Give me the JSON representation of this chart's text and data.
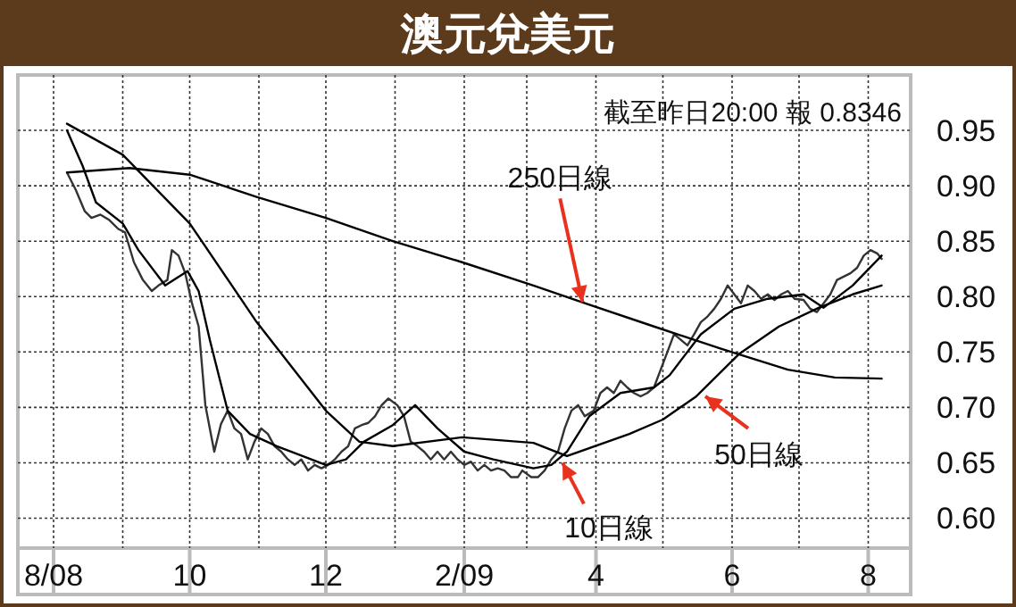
{
  "chart_data": {
    "type": "line",
    "title": "澳元兌美元",
    "xlim": [
      "2008-08-01",
      "2009-08-20"
    ],
    "xticks": [
      {
        "value": "2008-08-01",
        "label": "8/08"
      },
      {
        "value": "2008-09-01",
        "label": null
      },
      {
        "value": "2008-10-01",
        "label": "10"
      },
      {
        "value": "2008-11-01",
        "label": null
      },
      {
        "value": "2008-12-01",
        "label": "12"
      },
      {
        "value": "2009-01-01",
        "label": null
      },
      {
        "value": "2009-02-01",
        "label": "2/09"
      },
      {
        "value": "2009-03-01",
        "label": null
      },
      {
        "value": "2009-04-01",
        "label": "4"
      },
      {
        "value": "2009-05-01",
        "label": null
      },
      {
        "value": "2009-06-01",
        "label": "6"
      },
      {
        "value": "2009-07-01",
        "label": null
      },
      {
        "value": "2009-08-01",
        "label": "8"
      }
    ],
    "ylim": [
      0.573,
      1.0
    ],
    "yticks": [
      {
        "value": 0.6,
        "label": "0.60"
      },
      0.65,
      {
        "value": 0.7,
        "label": "0.70"
      },
      0.75,
      {
        "value": 0.8,
        "label": "0.80"
      },
      0.85,
      {
        "value": 0.9,
        "label": "0.90"
      },
      0.95
    ],
    "grid": true,
    "line_style": "solid",
    "series": [
      {
        "color": "#333333",
        "x": [
          "2008-08-07",
          "2008-08-11",
          "2008-08-15",
          "2008-08-18",
          "2008-08-22",
          "2008-08-26",
          "2008-08-30",
          "2008-09-02",
          "2008-09-06",
          "2008-09-10",
          "2008-09-14",
          "2008-09-17",
          "2008-09-21",
          "2008-09-23",
          "2008-09-26",
          "2008-09-29",
          "2008-10-02",
          "2008-10-05",
          "2008-10-08",
          "2008-10-10",
          "2008-10-12",
          "2008-10-15",
          "2008-10-18",
          "2008-10-21",
          "2008-10-24",
          "2008-10-27",
          "2008-10-30",
          "2008-11-02",
          "2008-11-05",
          "2008-11-08",
          "2008-11-11",
          "2008-11-14",
          "2008-11-17",
          "2008-11-20",
          "2008-11-23",
          "2008-11-26",
          "2008-11-29",
          "2008-12-02",
          "2008-12-05",
          "2008-12-08",
          "2008-12-11",
          "2008-12-14",
          "2008-12-17",
          "2008-12-20",
          "2008-12-23",
          "2008-12-26",
          "2008-12-29",
          "2009-01-02",
          "2009-01-05",
          "2009-01-08",
          "2009-01-11",
          "2009-01-14",
          "2009-01-17",
          "2009-01-20",
          "2009-01-23",
          "2009-01-26",
          "2009-01-29",
          "2009-02-01",
          "2009-02-04",
          "2009-02-07",
          "2009-02-10",
          "2009-02-13",
          "2009-02-16",
          "2009-02-19",
          "2009-02-22",
          "2009-02-25",
          "2009-02-27",
          "2009-03-03",
          "2009-03-06",
          "2009-03-09",
          "2009-03-12",
          "2009-03-15",
          "2009-03-18",
          "2009-03-21",
          "2009-03-24",
          "2009-03-27",
          "2009-03-31",
          "2009-04-03",
          "2009-04-06",
          "2009-04-09",
          "2009-04-12",
          "2009-04-15",
          "2009-04-18",
          "2009-04-21",
          "2009-04-24",
          "2009-04-27",
          "2009-04-30",
          "2009-05-03",
          "2009-05-06",
          "2009-05-09",
          "2009-05-12",
          "2009-05-15",
          "2009-05-18",
          "2009-05-21",
          "2009-05-24",
          "2009-05-27",
          "2009-05-30",
          "2009-06-02",
          "2009-06-05",
          "2009-06-08",
          "2009-06-11",
          "2009-06-14",
          "2009-06-17",
          "2009-06-20",
          "2009-06-23",
          "2009-06-26",
          "2009-06-29",
          "2009-07-03",
          "2009-07-06",
          "2009-07-09",
          "2009-07-12",
          "2009-07-15",
          "2009-07-18",
          "2009-07-21",
          "2009-07-24",
          "2009-07-27",
          "2009-07-30",
          "2009-08-02",
          "2009-08-05",
          "2009-08-07"
        ],
        "values": [
          0.912,
          0.896,
          0.877,
          0.871,
          0.874,
          0.869,
          0.861,
          0.858,
          0.831,
          0.815,
          0.805,
          0.81,
          0.815,
          0.842,
          0.837,
          0.821,
          0.794,
          0.773,
          0.702,
          0.681,
          0.66,
          0.685,
          0.697,
          0.681,
          0.676,
          0.653,
          0.669,
          0.681,
          0.676,
          0.665,
          0.66,
          0.653,
          0.648,
          0.653,
          0.643,
          0.648,
          0.645,
          0.648,
          0.653,
          0.66,
          0.665,
          0.681,
          0.684,
          0.686,
          0.692,
          0.702,
          0.708,
          0.702,
          0.692,
          0.669,
          0.665,
          0.66,
          0.653,
          0.66,
          0.653,
          0.66,
          0.653,
          0.648,
          0.651,
          0.643,
          0.648,
          0.643,
          0.645,
          0.643,
          0.637,
          0.637,
          0.643,
          0.637,
          0.637,
          0.643,
          0.653,
          0.66,
          0.681,
          0.697,
          0.702,
          0.692,
          0.697,
          0.713,
          0.718,
          0.713,
          0.724,
          0.718,
          0.713,
          0.71,
          0.713,
          0.718,
          0.734,
          0.75,
          0.766,
          0.761,
          0.756,
          0.766,
          0.777,
          0.782,
          0.789,
          0.798,
          0.81,
          0.802,
          0.794,
          0.81,
          0.805,
          0.798,
          0.802,
          0.797,
          0.802,
          0.805,
          0.798,
          0.797,
          0.789,
          0.786,
          0.794,
          0.802,
          0.815,
          0.818,
          0.821,
          0.826,
          0.837,
          0.842,
          0.839,
          0.834
        ]
      },
      {
        "color": "#000000",
        "x": [
          "2008-08-07",
          "2008-08-14",
          "2008-08-20",
          "2008-09-01",
          "2008-09-08",
          "2008-09-20",
          "2008-09-30",
          "2008-10-05",
          "2008-10-10",
          "2008-10-18",
          "2008-10-28",
          "2008-11-09",
          "2008-12-01",
          "2008-12-10",
          "2008-12-18",
          "2008-12-31",
          "2009-01-10",
          "2009-01-20",
          "2009-02-01",
          "2009-02-14",
          "2009-03-04",
          "2009-03-12",
          "2009-03-19",
          "2009-03-29",
          "2009-04-12",
          "2009-04-27",
          "2009-05-04",
          "2009-05-18",
          "2009-06-02",
          "2009-06-17",
          "2009-07-03",
          "2009-07-12",
          "2009-07-25",
          "2009-08-07"
        ],
        "values": [
          0.95,
          0.918,
          0.885,
          0.866,
          0.842,
          0.81,
          0.823,
          0.805,
          0.761,
          0.697,
          0.676,
          0.665,
          0.648,
          0.653,
          0.669,
          0.684,
          0.702,
          0.681,
          0.66,
          0.653,
          0.645,
          0.648,
          0.66,
          0.692,
          0.713,
          0.718,
          0.729,
          0.766,
          0.789,
          0.798,
          0.802,
          0.79,
          0.81,
          0.837
        ]
      },
      {
        "color": "#000000",
        "x": [
          "2008-08-07",
          "2008-09-01",
          "2008-10-01",
          "2008-10-31",
          "2008-12-01",
          "2008-12-16",
          "2008-12-31",
          "2009-01-31",
          "2009-03-04",
          "2009-03-19",
          "2009-04-16",
          "2009-05-01",
          "2009-05-16",
          "2009-06-04",
          "2009-06-22",
          "2009-07-10",
          "2009-07-25",
          "2009-08-07"
        ],
        "values": [
          0.956,
          0.928,
          0.866,
          0.777,
          0.697,
          0.669,
          0.665,
          0.673,
          0.668,
          0.656,
          0.676,
          0.689,
          0.71,
          0.748,
          0.773,
          0.79,
          0.802,
          0.81
        ]
      },
      {
        "color": "#000000",
        "x": [
          "2008-08-07",
          "2008-09-04",
          "2008-10-01",
          "2008-10-31",
          "2008-12-01",
          "2008-12-31",
          "2009-01-31",
          "2009-03-04",
          "2009-03-27",
          "2009-04-27",
          "2009-05-27",
          "2009-06-26",
          "2009-07-17",
          "2009-08-07"
        ],
        "values": [
          0.912,
          0.916,
          0.91,
          0.89,
          0.871,
          0.85,
          0.831,
          0.81,
          0.794,
          0.773,
          0.753,
          0.734,
          0.727,
          0.726
        ]
      }
    ],
    "annotations": [
      "截至昨日20:00 報 0.8346",
      {
        "text": "250日線",
        "x": "2009-03-26",
        "y": 0.795
      },
      {
        "text": "50日線",
        "x": "2009-05-20",
        "y": 0.71
      },
      {
        "text": "10日線",
        "x": "2009-03-17",
        "y": 0.65
      }
    ]
  }
}
